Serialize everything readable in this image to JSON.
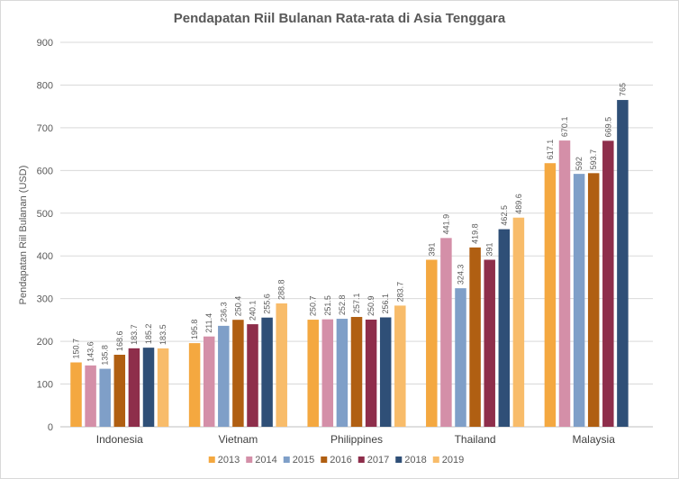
{
  "chart_data": {
    "type": "bar",
    "title": "Pendapatan Riil Bulanan Rata-rata di Asia Tenggara",
    "ylabel": "Pendapatan Riil Bulanan (USD)",
    "xlabel": "",
    "ylim": [
      0,
      900
    ],
    "yticks": [
      "0",
      "100",
      "200",
      "300",
      "400",
      "500",
      "600",
      "700",
      "800",
      "900"
    ],
    "grid": true,
    "legend_position": "bottom",
    "categories": [
      "Indonesia",
      "Vietnam",
      "Philippines",
      "Thailand",
      "Malaysia"
    ],
    "series": [
      {
        "name": "2013",
        "color": "#f4a840",
        "values": [
          150.7,
          195.8,
          250.7,
          391,
          617.1
        ],
        "labels": [
          "150.7",
          "195.8",
          "250.7",
          "391",
          "617.1"
        ]
      },
      {
        "name": "2014",
        "color": "#d48fa8",
        "values": [
          143.6,
          211.4,
          251.5,
          441.9,
          670.1
        ],
        "labels": [
          "143.6",
          "211.4",
          "251.5",
          "441.9",
          "670.1"
        ]
      },
      {
        "name": "2015",
        "color": "#7f9fc8",
        "values": [
          135.8,
          236.3,
          252.8,
          324.3,
          592
        ],
        "labels": [
          "135.8",
          "236.3",
          "252.8",
          "324.3",
          "592"
        ]
      },
      {
        "name": "2016",
        "color": "#b05f12",
        "values": [
          168.6,
          250.4,
          257.1,
          419.8,
          593.7
        ],
        "labels": [
          "168.6",
          "250.4",
          "257.1",
          "419.8",
          "593.7"
        ]
      },
      {
        "name": "2017",
        "color": "#8e2e4b",
        "values": [
          183.7,
          240.1,
          250.9,
          391,
          669.5
        ],
        "labels": [
          "183.7",
          "240.1",
          "250.9",
          "391",
          "669.5"
        ]
      },
      {
        "name": "2018",
        "color": "#2f4f77",
        "values": [
          185.2,
          255.6,
          256.1,
          462.5,
          765
        ],
        "labels": [
          "185.2",
          "255.6",
          "256.1",
          "462.5",
          "765"
        ]
      },
      {
        "name": "2019",
        "color": "#f8bc6a",
        "values": [
          183.5,
          288.8,
          283.7,
          489.6,
          null
        ],
        "labels": [
          "183.5",
          "288.8",
          "283.7",
          "489.6",
          ""
        ]
      }
    ]
  }
}
